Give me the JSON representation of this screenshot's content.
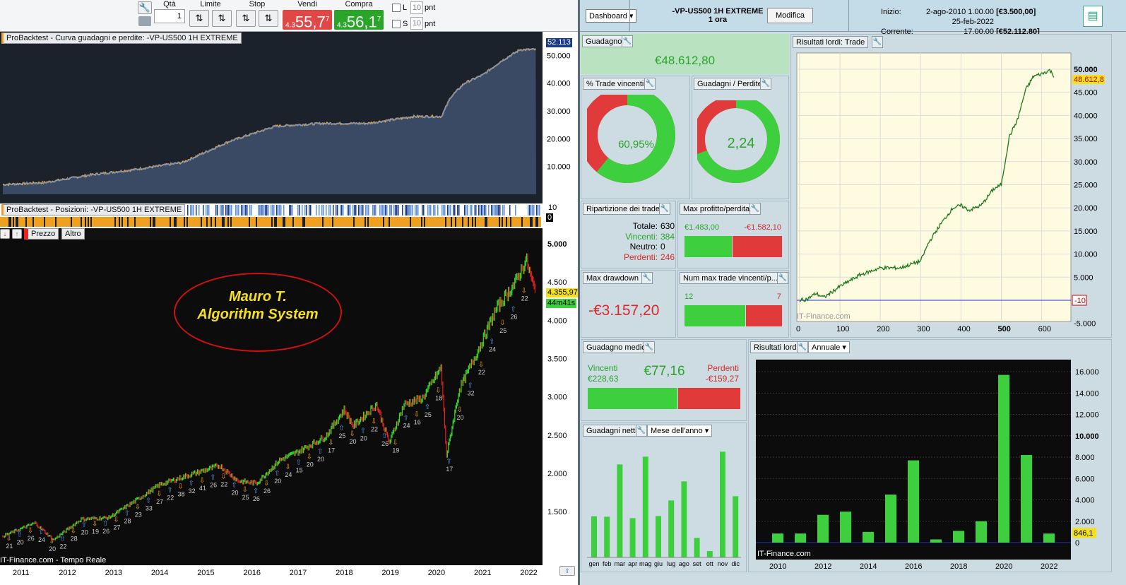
{
  "toolbar": {
    "qty_label": "Qtà",
    "qty_value": "1",
    "limit_label": "Limite",
    "stop_label": "Stop",
    "sell_label": "Vendi",
    "sell_prefix": "4.3",
    "sell_price": "55,7",
    "sell_sup": "7",
    "buy_label": "Compra",
    "buy_prefix": "4.3",
    "buy_price": "56,1",
    "buy_sup": "7",
    "l_label": "L",
    "s_label": "S",
    "l_value": "10",
    "s_value": "10",
    "unit": "pnt"
  },
  "equity_panel": {
    "title": "ProBacktest - Curva guadagni e perdite: -VP-US500 1H EXTREME",
    "last_value": "52.113",
    "y_ticks": [
      "50.000",
      "40.000",
      "30.000",
      "20.000",
      "10.000"
    ]
  },
  "positions_panel": {
    "title": "ProBacktest - Posizioni: -VP-US500 1H EXTREME",
    "y_top": "10",
    "y_bottom": "0"
  },
  "price_toolbar": {
    "price_label": "Prezzo",
    "other_label": "Altro"
  },
  "price_panel": {
    "annotation_line1": "Mauro T.",
    "annotation_line2": "Algorithm System",
    "y_ticks": [
      "5.000",
      "4.500",
      "4.000",
      "3.500",
      "3.000",
      "2.500",
      "2.000",
      "1.500"
    ],
    "last_price": "4.355,97",
    "timer": "44m41s",
    "source": "IT-Finance.com - Tempo Reale",
    "x_ticks": [
      "2011",
      "2012",
      "2013",
      "2014",
      "2015",
      "2016",
      "2017",
      "2018",
      "2019",
      "2020",
      "2021",
      "2022"
    ],
    "close_series": [
      [
        2010.6,
        1180
      ],
      [
        2011.3,
        1350
      ],
      [
        2011.7,
        1130
      ],
      [
        2012.3,
        1400
      ],
      [
        2012.9,
        1420
      ],
      [
        2013.5,
        1650
      ],
      [
        2014,
        1850
      ],
      [
        2014.5,
        1950
      ],
      [
        2015.3,
        2100
      ],
      [
        2015.7,
        1900
      ],
      [
        2016.1,
        1870
      ],
      [
        2016.6,
        2170
      ],
      [
        2017,
        2280
      ],
      [
        2017.6,
        2480
      ],
      [
        2018,
        2830
      ],
      [
        2018.2,
        2620
      ],
      [
        2018.7,
        2900
      ],
      [
        2018.98,
        2400
      ],
      [
        2019.3,
        2900
      ],
      [
        2019.7,
        2980
      ],
      [
        2020.1,
        3380
      ],
      [
        2020.22,
        2230
      ],
      [
        2020.5,
        3100
      ],
      [
        2020.9,
        3600
      ],
      [
        2021.3,
        4150
      ],
      [
        2021.7,
        4480
      ],
      [
        2021.95,
        4790
      ],
      [
        2022.1,
        4450
      ],
      [
        2022.15,
        4356
      ]
    ],
    "trade_labels": [
      "21",
      "20",
      "26",
      "24",
      "20",
      "22",
      "28",
      "20",
      "19",
      "26",
      "27",
      "28",
      "23",
      "33",
      "27",
      "22",
      "38",
      "32",
      "41",
      "26",
      "22",
      "20",
      "25",
      "26",
      "26",
      "20",
      "24",
      "15",
      "20",
      "20",
      "17",
      "25",
      "20",
      "20",
      "22",
      "26",
      "19",
      "24",
      "16",
      "25",
      "18",
      "17",
      "20",
      "32",
      "22",
      "24",
      "25",
      "26",
      "22"
    ]
  },
  "header": {
    "dashboard_label": "Dashboard",
    "system_name": "-VP-US500 1H EXTREME",
    "timeframe": "1 ora",
    "edit_label": "Modifica",
    "start_label": "Inizio:",
    "start_date": "2-ago-2010 1.00.00",
    "start_value": "[€3.500,00]",
    "current_label": "Corrente:",
    "current_date": "25-feb-2022 17.00.00",
    "current_value": "[€52.112,80]"
  },
  "gain": {
    "title": "Guadagno",
    "value": "€48.612,80"
  },
  "win_pct": {
    "title": "% Trade vincenti",
    "value": "60,95%",
    "fraction": 0.6095
  },
  "gain_loss": {
    "title": "Guadagni / Perdite",
    "value": "2,24",
    "fraction": 0.691
  },
  "breakdown": {
    "title": "Ripartizione dei trade",
    "total_label": "Totale:",
    "total": "630",
    "win_label": "Vincenti:",
    "win": "384",
    "neutral_label": "Neutro:",
    "neutral": "0",
    "loss_label": "Perdenti:",
    "loss": "246"
  },
  "max_pl": {
    "title": "Max profitto/perdita",
    "profit": "€1.483,00",
    "loss": "-€1.582,10"
  },
  "drawdown": {
    "title": "Max drawdown",
    "value": "-€3.157,20"
  },
  "consec": {
    "title": "Num max trade vincenti/p...",
    "wins": "12",
    "losses": "7"
  },
  "avg_gain": {
    "title": "Guadagno medio",
    "value": "€77,16",
    "win_label": "Vincenti",
    "win": "€228,63",
    "loss_label": "Perdenti",
    "loss": "-€159,27"
  },
  "trade_results": {
    "title": "Risultati lordi: Trade",
    "last_label": "48.612,8",
    "zero_label": "-10",
    "source": "IT-Finance.com"
  },
  "annual": {
    "title": "Risultati lordi",
    "mode": "Annuale",
    "last_label": "846,1",
    "source": "IT-Finance.com"
  },
  "monthly": {
    "title": "Guadagni netti",
    "mode": "Mese dell'anno"
  },
  "colors": {
    "win": "#3ecf3e",
    "loss": "#e03a3a",
    "equity_line": "#5b8fe8"
  },
  "chart_data": [
    {
      "type": "area",
      "title": "ProBacktest - Curva guadagni e perdite: -VP-US500 1H EXTREME",
      "x": [
        2010.6,
        2011.5,
        2012.5,
        2013.5,
        2014.5,
        2015.5,
        2016.5,
        2017.5,
        2018.5,
        2019.5,
        2020.1,
        2020.3,
        2020.6,
        2021,
        2021.4,
        2021.8,
        2022.15
      ],
      "y": [
        3500,
        4200,
        7000,
        9000,
        11500,
        19000,
        24500,
        25500,
        25500,
        28000,
        28000,
        35000,
        40000,
        43000,
        48000,
        52000,
        52113
      ],
      "ylim": [
        0,
        55000
      ]
    },
    {
      "type": "line",
      "title": "Risultati lordi: Trade",
      "x": [
        0,
        20,
        40,
        60,
        100,
        150,
        200,
        250,
        300,
        320,
        350,
        380,
        400,
        420,
        450,
        480,
        500,
        520,
        540,
        560,
        580,
        600,
        620,
        630
      ],
      "y": [
        0,
        300,
        1500,
        600,
        3000,
        5500,
        7000,
        7000,
        8500,
        12500,
        16500,
        20000,
        20500,
        19500,
        20500,
        24000,
        25000,
        35500,
        39000,
        45500,
        48500,
        49000,
        49800,
        48612.8
      ],
      "xlim": [
        0,
        650
      ],
      "ylim": [
        -5000,
        50000
      ],
      "x_ticks": [
        "0",
        "100",
        "200",
        "300",
        "400",
        "500",
        "600"
      ],
      "y_ticks": [
        "50.000",
        "45.000",
        "40.000",
        "35.000",
        "30.000",
        "25.000",
        "20.000",
        "15.000",
        "10.000",
        "5.000",
        "-5.000"
      ]
    },
    {
      "type": "bar",
      "title": "Risultati lordi",
      "categories": [
        "2010",
        "2011",
        "2012",
        "2013",
        "2014",
        "2015",
        "2016",
        "2017",
        "2018",
        "2019",
        "2020",
        "2021",
        "2022"
      ],
      "values": [
        850,
        850,
        2600,
        2900,
        1000,
        4500,
        7700,
        300,
        1100,
        2000,
        15700,
        8200,
        846.1
      ],
      "ylim": [
        0,
        17000
      ],
      "x_ticks": [
        "2010",
        "2012",
        "2014",
        "2016",
        "2018",
        "2020",
        "2022"
      ],
      "y_ticks": [
        "16.000",
        "14.000",
        "12.000",
        "10.000",
        "8.000",
        "6.000",
        "4.000",
        "2.000",
        "0"
      ]
    },
    {
      "type": "bar",
      "title": "Guadagni netti",
      "categories": [
        "gen",
        "feb",
        "mar",
        "apr",
        "mag",
        "giu",
        "lug",
        "ago",
        "set",
        "ott",
        "nov",
        "dic"
      ],
      "values": [
        175,
        173,
        395,
        167,
        428,
        176,
        242,
        323,
        83,
        27,
        449,
        260
      ]
    }
  ]
}
